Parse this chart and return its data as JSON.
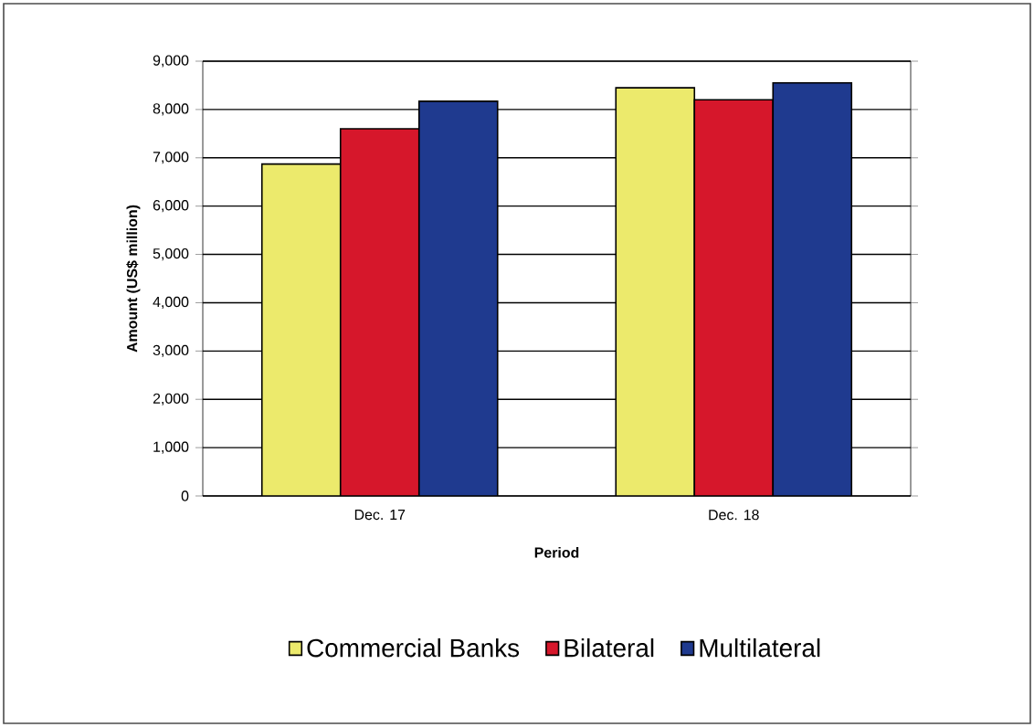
{
  "chart_data": {
    "type": "bar",
    "xlabel": "Period",
    "ylabel": "Amount  (US$ million)",
    "categories": [
      "Dec. 17",
      "Dec. 18"
    ],
    "series": [
      {
        "name": "Commercial Banks",
        "color": "#ecea6c",
        "values": [
          6870,
          8450
        ]
      },
      {
        "name": "Bilateral",
        "color": "#d6172b",
        "values": [
          7600,
          8200
        ]
      },
      {
        "name": "Multilateral",
        "color": "#1f3a8f",
        "values": [
          8170,
          8550
        ]
      }
    ],
    "ylim": [
      0,
      9000
    ],
    "yticks": [
      {
        "value": 0,
        "label": "0"
      },
      {
        "value": 1000,
        "label": "1,000"
      },
      {
        "value": 2000,
        "label": "2,000"
      },
      {
        "value": 3000,
        "label": "3,000"
      },
      {
        "value": 4000,
        "label": "4,000"
      },
      {
        "value": 5000,
        "label": "5,000"
      },
      {
        "value": 6000,
        "label": "6,000"
      },
      {
        "value": 7000,
        "label": "7,000"
      },
      {
        "value": 8000,
        "label": "8,000"
      },
      {
        "value": 9000,
        "label": "9,000"
      }
    ],
    "grid": "y",
    "legend": "bottom"
  }
}
